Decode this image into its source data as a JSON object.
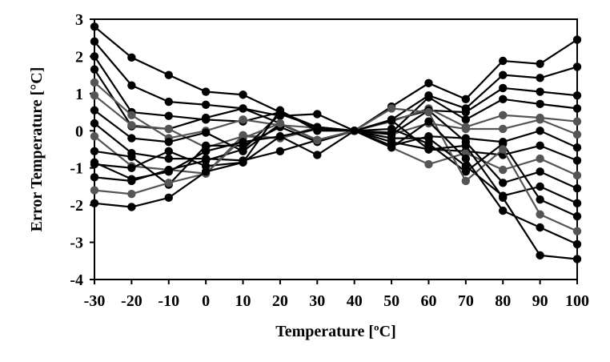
{
  "chart_data": {
    "type": "line",
    "title": "",
    "xlabel": "Temperature [ºC]",
    "ylabel": "Error Temperature [°C]",
    "xlim": [
      -30,
      100
    ],
    "ylim": [
      -4,
      3
    ],
    "x": [
      -30,
      -20,
      -10,
      0,
      10,
      20,
      30,
      40,
      50,
      60,
      70,
      80,
      90,
      100
    ],
    "x_ticks": [
      "-30",
      "-20",
      "-10",
      "0",
      "10",
      "20",
      "30",
      "40",
      "50",
      "60",
      "70",
      "80",
      "90",
      "100"
    ],
    "y_ticks": [
      "-4",
      "-3",
      "-2",
      "-1",
      "0",
      "1",
      "2",
      "3"
    ],
    "y_tick_values": [
      -4,
      -3,
      -2,
      -1,
      0,
      1,
      2,
      3
    ],
    "grid": false,
    "legend": "none",
    "line_color": "#000000",
    "highlight_color": "#555555",
    "series": [
      {
        "values": [
          2.8,
          1.97,
          1.5,
          1.05,
          0.97,
          0.5,
          0.1,
          0,
          0.65,
          1.28,
          0.85,
          1.88,
          1.8,
          2.45
        ],
        "color": "#000000"
      },
      {
        "values": [
          2.4,
          1.22,
          0.78,
          0.7,
          0.6,
          0.4,
          0.45,
          0,
          0.3,
          0.95,
          0.6,
          1.5,
          1.42,
          1.72
        ],
        "color": "#000000"
      },
      {
        "values": [
          2.0,
          0.5,
          0.4,
          0.3,
          0.25,
          0.5,
          0.05,
          0,
          0.28,
          0.55,
          0.5,
          1.15,
          1.05,
          0.95
        ],
        "color": "#000000"
      },
      {
        "values": [
          1.65,
          0.12,
          0.05,
          0.35,
          0.6,
          0.2,
          -0.25,
          0,
          -0.05,
          0.9,
          0.3,
          0.85,
          0.72,
          0.6
        ],
        "color": "#000000"
      },
      {
        "values": [
          1.3,
          0.42,
          -0.2,
          0.0,
          0.3,
          0.15,
          0.08,
          0,
          0.25,
          0.6,
          0.1,
          0.42,
          0.35,
          0.25
        ],
        "color": "#555555"
      },
      {
        "values": [
          0.95,
          0.15,
          0.05,
          -0.45,
          -0.15,
          -0.2,
          0.1,
          0,
          -0.1,
          0.2,
          0.05,
          0.05,
          0.3,
          -0.1
        ],
        "color": "#555555"
      },
      {
        "values": [
          0.55,
          -0.2,
          -0.3,
          -0.05,
          -0.55,
          0.18,
          -0.25,
          0,
          -0.4,
          -0.15,
          -0.2,
          -0.3,
          0.0,
          -0.45
        ],
        "color": "#000000"
      },
      {
        "values": [
          0.2,
          -0.6,
          -0.75,
          -0.75,
          -0.8,
          -0.55,
          -0.25,
          0,
          0.28,
          -0.5,
          -0.55,
          -0.65,
          -0.4,
          -0.8
        ],
        "color": "#000000"
      },
      {
        "values": [
          -0.15,
          -0.95,
          -1.05,
          -1.15,
          -0.12,
          -0.2,
          0.05,
          0,
          -0.45,
          -0.9,
          -0.6,
          -1.05,
          -0.75,
          -1.2
        ],
        "color": "#555555"
      },
      {
        "values": [
          -0.55,
          -0.7,
          -1.45,
          -0.4,
          -0.4,
          0.1,
          -0.3,
          0,
          -0.1,
          0.55,
          -0.3,
          -1.4,
          -1.1,
          -1.55
        ],
        "color": "#000000"
      },
      {
        "values": [
          -0.9,
          -1.0,
          -0.55,
          -0.95,
          -0.85,
          -0.15,
          -0.65,
          0,
          -0.2,
          -0.2,
          -0.95,
          -1.75,
          -1.5,
          -1.95
        ],
        "color": "#000000"
      },
      {
        "values": [
          -1.25,
          -1.35,
          -1.05,
          -0.8,
          -0.5,
          0.45,
          0.1,
          0,
          0.05,
          -0.35,
          -1.1,
          -0.35,
          -1.85,
          -2.3
        ],
        "color": "#000000"
      },
      {
        "values": [
          -1.6,
          -1.7,
          -1.4,
          -1.15,
          -0.2,
          0.2,
          -0.25,
          0,
          0.6,
          0.5,
          -1.35,
          -0.5,
          -2.25,
          -2.7
        ],
        "color": "#555555"
      },
      {
        "values": [
          -1.95,
          -2.05,
          -1.8,
          -1.1,
          -0.85,
          0.55,
          0.0,
          0,
          -0.45,
          0.25,
          -0.75,
          -2.15,
          -2.6,
          -3.05
        ],
        "color": "#000000"
      },
      {
        "values": [
          -0.85,
          -1.3,
          -1.1,
          -0.55,
          -0.3,
          -0.15,
          0.05,
          0,
          -0.3,
          -0.5,
          -0.4,
          -1.8,
          -3.35,
          -3.45
        ],
        "color": "#000000"
      }
    ]
  }
}
